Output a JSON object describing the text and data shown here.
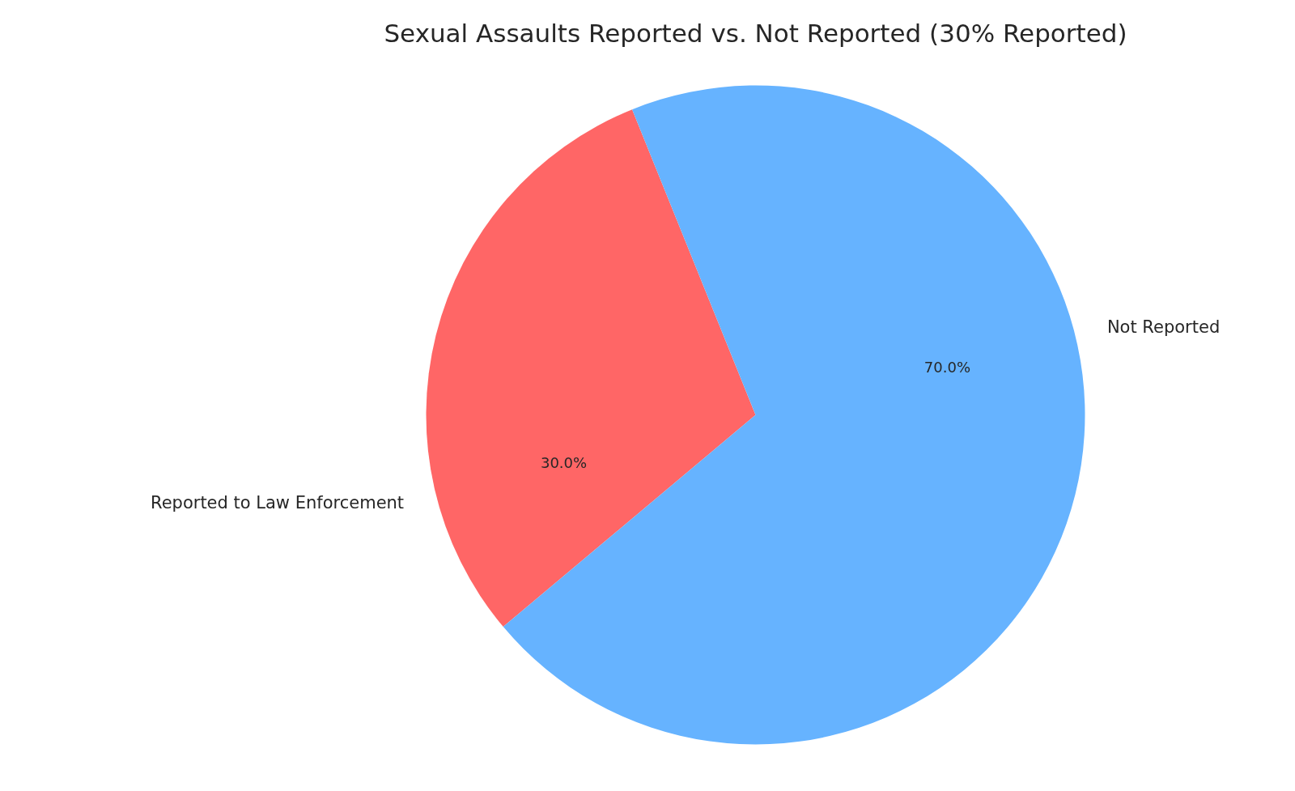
{
  "chart_data": {
    "type": "pie",
    "title": "Sexual Assaults Reported vs. Not Reported (30% Reported)",
    "categories": [
      "Reported to Law Enforcement",
      "Not Reported"
    ],
    "values": [
      30,
      70
    ],
    "colors": [
      "#ff6666",
      "#66b3ff"
    ],
    "value_labels": [
      "30.0%",
      "70.0%"
    ]
  }
}
